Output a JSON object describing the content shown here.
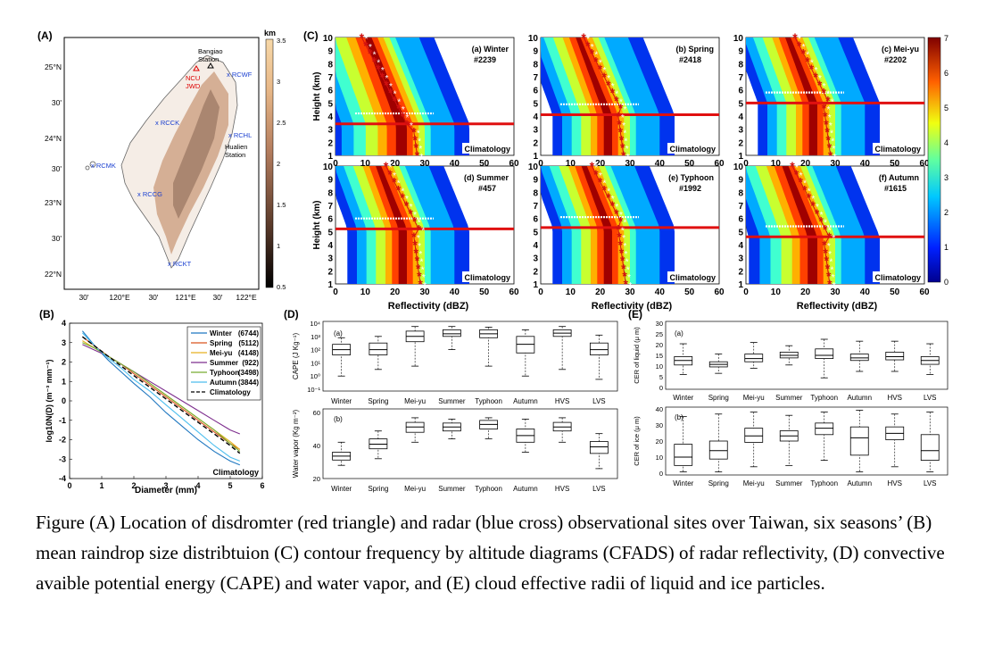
{
  "panelA": {
    "label": "(A)",
    "unit": "km",
    "colorbar_ticks": [
      "3.5",
      "3",
      "2.5",
      "2",
      "1.5",
      "1",
      "0.5"
    ],
    "lat_labels": [
      "25°N",
      "30'",
      "24°N",
      "30'",
      "23°N",
      "30'",
      "22°N"
    ],
    "lon_labels": [
      "30'",
      "120°E",
      "30'",
      "121°E",
      "30'",
      "122°E"
    ],
    "sites": [
      {
        "name": "Bangiao\nStation",
        "color": "#000"
      },
      {
        "name": "NCU",
        "color": "#d00"
      },
      {
        "name": "JWD",
        "color": "#d00"
      },
      {
        "name": "RCWF",
        "color": "#1a3fd0"
      },
      {
        "name": "RCCG",
        "color": "#1a3fd0"
      },
      {
        "name": "RCHL",
        "color": "#1a3fd0"
      },
      {
        "name": "Hualien Station",
        "color": "#000"
      },
      {
        "name": "RCMK",
        "color": "#1a3fd0"
      },
      {
        "name": "RCCG",
        "color": "#1a3fd0"
      },
      {
        "name": "RCKT",
        "color": "#1a3fd0"
      }
    ]
  },
  "panelB": {
    "label": "(B)",
    "xlabel": "Diameter (mm)",
    "ylabel": "log10N(D) (m⁻³ mm⁻¹)",
    "annotation": "Climatology",
    "chart_data": {
      "type": "line",
      "xlim": [
        0,
        6
      ],
      "ylim": [
        -4,
        4
      ],
      "x": [
        0.4,
        0.8,
        1.2,
        1.6,
        2.0,
        2.5,
        3.0,
        3.5,
        4.0,
        4.5,
        5.0,
        5.3
      ],
      "series": [
        {
          "name": "Winter",
          "count": "(6744)",
          "color": "#1f77c0",
          "values": [
            3.6,
            2.8,
            2.1,
            1.5,
            0.9,
            0.2,
            -0.6,
            -1.3,
            -2.0,
            -2.6,
            -3.1,
            -3.3
          ]
        },
        {
          "name": "Spring",
          "count": "(5112)",
          "color": "#d9531e",
          "values": [
            3.3,
            2.8,
            2.3,
            1.9,
            1.4,
            0.8,
            0.2,
            -0.4,
            -1.0,
            -1.6,
            -2.2,
            -2.5
          ]
        },
        {
          "name": "Mei-yu",
          "count": "(4148)",
          "color": "#e6b120",
          "values": [
            3.1,
            2.7,
            2.3,
            1.9,
            1.5,
            0.9,
            0.3,
            -0.3,
            -0.9,
            -1.5,
            -2.1,
            -2.5
          ]
        },
        {
          "name": "Summer",
          "count": "(922)",
          "color": "#7e2f8e",
          "values": [
            2.9,
            2.6,
            2.3,
            1.9,
            1.5,
            1.0,
            0.5,
            0.0,
            -0.5,
            -1.0,
            -1.5,
            -1.7
          ]
        },
        {
          "name": "Typhoon",
          "count": "(3498)",
          "color": "#77ac30",
          "values": [
            3.0,
            2.7,
            2.3,
            1.9,
            1.5,
            0.9,
            0.3,
            -0.3,
            -0.9,
            -1.5,
            -2.2,
            -2.6
          ]
        },
        {
          "name": "Autumn",
          "count": "(3844)",
          "color": "#4dbeee",
          "values": [
            3.5,
            2.8,
            2.2,
            1.7,
            1.1,
            0.5,
            -0.2,
            -0.9,
            -1.6,
            -2.3,
            -2.9,
            -3.1
          ]
        },
        {
          "name": "Climatology",
          "count": "",
          "color": "#000",
          "dash": true,
          "values": [
            3.3,
            2.8,
            2.3,
            1.8,
            1.3,
            0.7,
            0.1,
            -0.5,
            -1.1,
            -1.7,
            -2.3,
            -2.7
          ]
        }
      ]
    }
  },
  "panelC": {
    "label": "(C)",
    "ylabel": "Height (km)",
    "xlabel": "Reflectivity (dBZ)",
    "footer": "Climatology",
    "colorbar_ticks": [
      "7",
      "6",
      "5",
      "4",
      "3",
      "2",
      "1",
      "0"
    ],
    "subplots": [
      {
        "title": "(a) Winter",
        "count": "#2239",
        "melt": 3.4
      },
      {
        "title": "(b) Spring",
        "count": "#2418",
        "melt": 4.1
      },
      {
        "title": "(c) Mei-yu",
        "count": "#2202",
        "melt": 5.0
      },
      {
        "title": "(d) Summer",
        "count": "#457",
        "melt": 5.2
      },
      {
        "title": "(e) Typhoon",
        "count": "#1992",
        "melt": 5.3
      },
      {
        "title": "(f) Autumn",
        "count": "#1615",
        "melt": 4.6
      }
    ],
    "x_ticks": [
      "0",
      "10",
      "20",
      "30",
      "40",
      "50",
      "60"
    ],
    "y_ticks": [
      "10",
      "9",
      "8",
      "7",
      "6",
      "5",
      "4",
      "3",
      "2",
      "1"
    ]
  },
  "panelD": {
    "label": "(D)",
    "categories": [
      "Winter",
      "Spring",
      "Mei-yu",
      "Summer",
      "Typhoon",
      "Autumn",
      "HVS",
      "LVS"
    ],
    "top": {
      "sub": "(a)",
      "ylabel": "CAPE (J Kg⁻¹)",
      "yticks": [
        "10⁴",
        "10³",
        "10²",
        "10¹",
        "10⁰",
        "10⁻¹"
      ]
    },
    "bottom": {
      "sub": "(b)",
      "ylabel": "Water vapor (Kg m⁻²)",
      "yticks": [
        "60",
        "40",
        "20"
      ]
    }
  },
  "panelE": {
    "label": "(E)",
    "categories": [
      "Winter",
      "Spring",
      "Mei-yu",
      "Summer",
      "Typhoon",
      "Autumn",
      "HVS",
      "LVS"
    ],
    "top": {
      "sub": "(a)",
      "ylabel": "CER of liquid (μ m)",
      "yticks": [
        "30",
        "25",
        "20",
        "15",
        "10",
        "5",
        "0"
      ]
    },
    "bottom": {
      "sub": "(b)",
      "ylabel": "CER of ice (μ m)",
      "yticks": [
        "40",
        "30",
        "20",
        "10",
        "0"
      ]
    }
  },
  "caption": "Figure (A) Location of disdromter (red triangle) and radar (blue cross) observational sites over Taiwan, six seasons’ (B) mean raindrop size distribtuion (C) contour frequency by altitude diagrams (CFADS) of radar reflectivity, (D) convective avaible potential energy (CAPE) and water vapor, and (E) cloud effective radii of liquid and ice particles."
}
